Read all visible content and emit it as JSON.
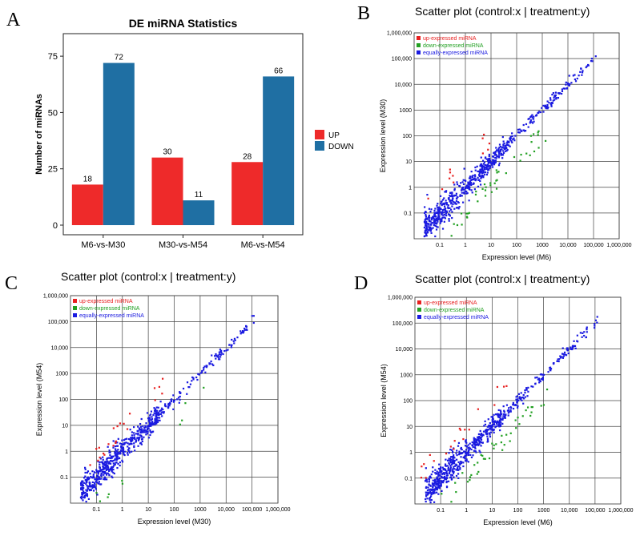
{
  "panels": {
    "a": "A",
    "b": "B",
    "c": "C",
    "d": "D"
  },
  "colors": {
    "up_bar": "#ee2a2a",
    "down_bar": "#1f6fa3",
    "up_point": "#e82020",
    "down_point": "#22a022",
    "equal_point": "#1a1ae0"
  },
  "chart_data": [
    {
      "id": "A",
      "type": "bar",
      "title": "DE miRNA Statistics",
      "xlabel": "",
      "ylabel": "Number of miRNAs",
      "ylim": [
        0,
        85
      ],
      "yticks": [
        "0",
        "25",
        "50",
        "75"
      ],
      "categories": [
        "M6-vs-M30",
        "M30-vs-M54",
        "M6-vs-M54"
      ],
      "series": [
        {
          "name": "UP",
          "values": [
            18,
            30,
            28
          ]
        },
        {
          "name": "DOWN",
          "values": [
            72,
            11,
            66
          ]
        }
      ],
      "value_labels": [
        [
          "18",
          "30",
          "28"
        ],
        [
          "72",
          "11",
          "66"
        ]
      ],
      "legend_position": "right"
    },
    {
      "id": "B",
      "type": "scatter",
      "title": "Scatter plot (control:x | treatment:y)",
      "xlabel": "Expression level (M6)",
      "ylabel": "Expression level (M30)",
      "xscale": "log",
      "yscale": "log",
      "xlim": [
        0.01,
        1000000
      ],
      "ylim": [
        0.01,
        1000000
      ],
      "xticks": [
        "0.1",
        "1",
        "10",
        "100",
        "1000",
        "10,000",
        "100,000",
        "1,000,000"
      ],
      "yticks": [
        "0.1",
        "1",
        "10",
        "100",
        "1000",
        "10,000",
        "100,000",
        "1,000,000"
      ],
      "series": [
        {
          "name": "up-expressed miRNA",
          "n": 12,
          "seed": 11
        },
        {
          "name": "down-expressed miRNA",
          "n": 45,
          "seed": 12
        },
        {
          "name": "equally-expressed miRNA",
          "n": 650,
          "seed": 13
        }
      ]
    },
    {
      "id": "C",
      "type": "scatter",
      "title": "Scatter plot (control:x | treatment:y)",
      "xlabel": "Expression level (M30)",
      "ylabel": "Expression level (M54)",
      "xscale": "log",
      "yscale": "log",
      "xlim": [
        0.01,
        1000000
      ],
      "ylim": [
        0.01,
        1000000
      ],
      "xticks": [
        "0.1",
        "1",
        "10",
        "100",
        "1000",
        "10,000",
        "100,000",
        "1,000,000"
      ],
      "yticks": [
        "0.1",
        "1",
        "10",
        "100",
        "1000",
        "10,000",
        "100,000",
        "1,000,000"
      ],
      "series": [
        {
          "name": "up-expressed miRNA",
          "n": 22,
          "seed": 21
        },
        {
          "name": "down-expressed miRNA",
          "n": 10,
          "seed": 22
        },
        {
          "name": "equally-expressed miRNA",
          "n": 650,
          "seed": 23
        }
      ]
    },
    {
      "id": "D",
      "type": "scatter",
      "title": "Scatter plot (control:x | treatment:y)",
      "xlabel": "Expression level (M6)",
      "ylabel": "Expression level (M54)",
      "xscale": "log",
      "yscale": "log",
      "xlim": [
        0.01,
        1000000
      ],
      "ylim": [
        0.01,
        1000000
      ],
      "xticks": [
        "0.1",
        "1",
        "10",
        "100",
        "1000",
        "10,000",
        "100,000",
        "1,000,000"
      ],
      "yticks": [
        "0.1",
        "1",
        "10",
        "100",
        "1000",
        "10,000",
        "100,000",
        "1,000,000"
      ],
      "series": [
        {
          "name": "up-expressed miRNA",
          "n": 20,
          "seed": 31
        },
        {
          "name": "down-expressed miRNA",
          "n": 45,
          "seed": 32
        },
        {
          "name": "equally-expressed miRNA",
          "n": 650,
          "seed": 33
        }
      ]
    }
  ]
}
